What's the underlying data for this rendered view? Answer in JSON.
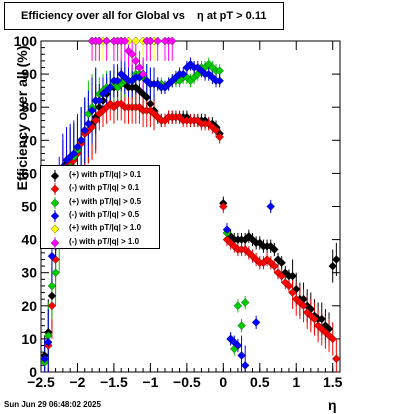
{
  "title": "Efficiency over all for Global vs    η at pT > 0.11",
  "timestamp": "Sun Jun 29 06:48:02 2025",
  "chart_data": {
    "type": "scatter",
    "xlabel": "η",
    "ylabel": "Efficiency over all (%)",
    "xlim": [
      -2.5,
      1.6
    ],
    "ylim": [
      0,
      100
    ],
    "xticks": [
      {
        "v": -2.5,
        "label": "−2.5"
      },
      {
        "v": -2,
        "label": "−2"
      },
      {
        "v": -1.5,
        "label": "−1.5"
      },
      {
        "v": -1,
        "label": "−1"
      },
      {
        "v": -0.5,
        "label": "−0.5"
      },
      {
        "v": 0,
        "label": "0"
      },
      {
        "v": 0.5,
        "label": "0.5"
      },
      {
        "v": 1,
        "label": "1"
      },
      {
        "v": 1.5,
        "label": "1.5"
      }
    ],
    "yticks": [
      0,
      10,
      20,
      30,
      40,
      50,
      60,
      70,
      80,
      90,
      100
    ],
    "legend_position": "left-middle",
    "series": [
      {
        "name": "(+) with pT/|q| > 0.1",
        "color": "#000000",
        "x": [
          -2.45,
          -2.4,
          -2.35,
          -2.3,
          -2.25,
          -2.2,
          -2.15,
          -2.1,
          -2.05,
          -2.0,
          -1.95,
          -1.9,
          -1.85,
          -1.8,
          -1.75,
          -1.7,
          -1.65,
          -1.6,
          -1.55,
          -1.5,
          -1.45,
          -1.4,
          -1.35,
          -1.3,
          -1.25,
          -1.2,
          -1.15,
          -1.1,
          -1.05,
          -1.0,
          -0.95,
          -0.9,
          -0.85,
          -0.8,
          -0.75,
          -0.7,
          -0.65,
          -0.6,
          -0.55,
          -0.5,
          -0.45,
          -0.4,
          -0.35,
          -0.3,
          -0.25,
          -0.2,
          -0.15,
          -0.1,
          -0.05,
          0.0,
          0.05,
          0.1,
          0.15,
          0.2,
          0.25,
          0.3,
          0.35,
          0.4,
          0.45,
          0.5,
          0.55,
          0.6,
          0.65,
          0.7,
          0.75,
          0.8,
          0.85,
          0.9,
          0.95,
          1.0,
          1.05,
          1.1,
          1.15,
          1.2,
          1.25,
          1.3,
          1.35,
          1.4,
          1.45,
          1.5,
          1.55
        ],
        "y": [
          5,
          12,
          23,
          38,
          52,
          60,
          63,
          64,
          65,
          67,
          70,
          72,
          73,
          75,
          77,
          80,
          82,
          84,
          86,
          86,
          87,
          87,
          87,
          86,
          86,
          86,
          85,
          84,
          83,
          81,
          79,
          77,
          76,
          76,
          77,
          77,
          77,
          77,
          77,
          77,
          76,
          76,
          76,
          76,
          76,
          75,
          75,
          74,
          72,
          51,
          42,
          41,
          40,
          40,
          40,
          40,
          41,
          40,
          39,
          39,
          38,
          38,
          38,
          37,
          34,
          33,
          30,
          29,
          29,
          25,
          22,
          22,
          20,
          19,
          17,
          16,
          16,
          14,
          13,
          32,
          34
        ]
      },
      {
        "name": "(-) with pT/|q| > 0.1",
        "color": "#ff0000",
        "x": [
          -2.45,
          -2.4,
          -2.35,
          -2.3,
          -2.25,
          -2.2,
          -2.15,
          -2.1,
          -2.05,
          -2.0,
          -1.95,
          -1.9,
          -1.85,
          -1.8,
          -1.75,
          -1.7,
          -1.65,
          -1.6,
          -1.55,
          -1.5,
          -1.45,
          -1.4,
          -1.35,
          -1.3,
          -1.25,
          -1.2,
          -1.15,
          -1.1,
          -1.05,
          -1.0,
          -0.95,
          -0.9,
          -0.85,
          -0.8,
          -0.75,
          -0.7,
          -0.65,
          -0.6,
          -0.55,
          -0.5,
          -0.45,
          -0.4,
          -0.35,
          -0.3,
          -0.25,
          -0.2,
          -0.15,
          -0.1,
          -0.05,
          0.0,
          0.05,
          0.1,
          0.15,
          0.2,
          0.25,
          0.3,
          0.35,
          0.4,
          0.45,
          0.5,
          0.55,
          0.6,
          0.65,
          0.7,
          0.75,
          0.8,
          0.85,
          0.9,
          0.95,
          1.0,
          1.05,
          1.1,
          1.15,
          1.2,
          1.25,
          1.3,
          1.35,
          1.4,
          1.45,
          1.5,
          1.55
        ],
        "y": [
          3,
          8,
          20,
          34,
          50,
          58,
          62,
          63,
          64,
          66,
          69,
          72,
          73,
          74,
          76,
          78,
          79,
          80,
          81,
          80,
          81,
          81,
          80,
          80,
          80,
          80,
          80,
          79,
          79,
          79,
          78,
          77,
          76,
          76,
          77,
          77,
          77,
          77,
          76,
          76,
          76,
          76,
          76,
          75,
          75,
          75,
          74,
          73,
          71,
          50,
          40,
          39,
          38,
          37,
          37,
          37,
          36,
          35,
          34,
          33,
          33,
          34,
          33,
          32,
          30,
          29,
          27,
          26,
          24,
          22,
          21,
          20,
          18,
          17,
          16,
          14,
          13,
          12,
          11,
          10,
          4
        ]
      },
      {
        "name": "(+) with pT/|q| > 0.5",
        "color": "#00cc00",
        "x": [
          -2.45,
          -2.4,
          -2.35,
          -2.3,
          -2.25,
          -2.2,
          -2.15,
          -2.1,
          -2.05,
          -2.0,
          -1.95,
          -1.9,
          -1.85,
          -1.8,
          -1.75,
          -1.7,
          -1.65,
          -1.6,
          -1.55,
          -1.5,
          -1.45,
          -1.4,
          -1.35,
          -1.3,
          -1.25,
          -1.2,
          -1.15,
          -1.1,
          -1.05,
          -1.0,
          -0.95,
          -0.9,
          -0.85,
          -0.8,
          -0.75,
          -0.7,
          -0.65,
          -0.6,
          -0.55,
          -0.5,
          -0.45,
          -0.4,
          -0.35,
          -0.3,
          -0.25,
          -0.2,
          -0.15,
          -0.1,
          -0.05,
          0.05,
          0.1,
          0.15,
          0.2,
          0.25,
          0.3
        ],
        "y": [
          3,
          11,
          26,
          30,
          40,
          50,
          55,
          62,
          65,
          67,
          70,
          73,
          78,
          80,
          82,
          84,
          85,
          86,
          86,
          87,
          86,
          87,
          88,
          88,
          88,
          90,
          90,
          89,
          88,
          87,
          87,
          87,
          87,
          86,
          87,
          88,
          88,
          88,
          89,
          89,
          88,
          89,
          90,
          92,
          92,
          93,
          92,
          91,
          91,
          42,
          10,
          7,
          20,
          14,
          21
        ]
      },
      {
        "name": "(-) with pT/|q| > 0.5",
        "color": "#0000ff",
        "x": [
          -2.45,
          -2.4,
          -2.35,
          -2.3,
          -2.25,
          -2.2,
          -2.15,
          -2.1,
          -2.05,
          -2.0,
          -1.95,
          -1.9,
          -1.85,
          -1.8,
          -1.75,
          -1.7,
          -1.65,
          -1.6,
          -1.55,
          -1.5,
          -1.45,
          -1.4,
          -1.35,
          -1.3,
          -1.25,
          -1.2,
          -1.15,
          -1.1,
          -1.05,
          -1.0,
          -0.95,
          -0.9,
          -0.85,
          -0.8,
          -0.75,
          -0.7,
          -0.65,
          -0.6,
          -0.55,
          -0.5,
          -0.45,
          -0.4,
          -0.35,
          -0.3,
          -0.25,
          -0.2,
          -0.15,
          -0.1,
          -0.05,
          0.05,
          0.1,
          0.15,
          0.2,
          0.25,
          0.3,
          0.45,
          0.65
        ],
        "y": [
          4,
          9,
          35,
          45,
          55,
          62,
          64,
          65,
          66,
          68,
          70,
          73,
          75,
          79,
          82,
          82,
          84,
          85,
          86,
          88,
          88,
          90,
          89,
          88,
          88,
          89,
          89,
          90,
          88,
          87,
          87,
          87,
          86,
          86,
          87,
          88,
          89,
          90,
          90,
          92,
          93,
          92,
          92,
          91,
          90,
          90,
          89,
          88,
          88,
          43,
          10,
          9,
          8,
          5,
          2,
          15,
          50
        ]
      },
      {
        "name": "(+) with pT/|q| > 1.0",
        "color": "#ffff00",
        "x": [
          -1.8,
          -1.75,
          -1.7,
          -1.65,
          -1.6,
          -1.5,
          -1.45,
          -1.4,
          -1.3,
          -1.2,
          -1.1,
          -1.05,
          -1.0,
          -0.95
        ],
        "y": [
          100,
          100,
          100,
          100,
          100,
          100,
          100,
          100,
          100,
          100,
          100,
          100,
          100,
          100
        ]
      },
      {
        "name": "(-) with pT/|q| > 1.0",
        "color": "#ff00ff",
        "x": [
          -1.8,
          -1.75,
          -1.7,
          -1.6,
          -1.5,
          -1.45,
          -1.4,
          -1.35,
          -1.3,
          -1.25,
          -1.2,
          -1.15,
          -1.1,
          -1.05,
          -1.0,
          -0.9,
          -0.8,
          -0.75,
          -0.7
        ],
        "y": [
          100,
          100,
          100,
          100,
          100,
          100,
          100,
          100,
          97,
          96,
          94,
          92,
          90,
          100,
          100,
          100,
          100,
          100,
          100
        ]
      }
    ]
  }
}
